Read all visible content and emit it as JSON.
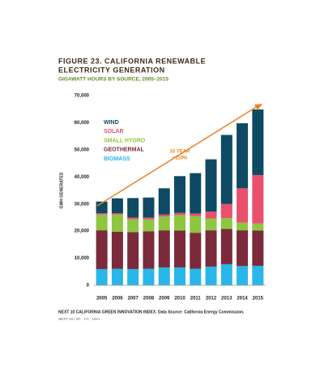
{
  "chart_data": {
    "type": "stacked_bar",
    "title": [
      "FIGURE 23. CALIFORNIA RENEWABLE",
      "ELECTRICITY GENERATION"
    ],
    "subtitle": "GIGAWATT HOURS BY SOURCE, 2005–2015",
    "y_label": "GWH GENERATED",
    "annotation": [
      "10 YEAR",
      "+110%"
    ],
    "source": "NEXT 10 CALIFORNIA GREEN INNOVATION INDEX. Data Source: California Energy Commission.",
    "footer": "NEXT 10 / SF · CA · USA",
    "categories": [
      "2005",
      "2006",
      "2007",
      "2008",
      "2009",
      "2010",
      "2011",
      "2012",
      "2013",
      "2014",
      "2015"
    ],
    "series": [
      {
        "name": "BIOMASS",
        "color": "#29b6e8",
        "values": [
          6000,
          6100,
          6000,
          6100,
          6600,
          6600,
          6100,
          6900,
          7800,
          7100,
          7200
        ]
      },
      {
        "name": "GEOTHERMAL",
        "color": "#7b2a3c",
        "values": [
          14300,
          13700,
          13600,
          13800,
          13700,
          13600,
          13300,
          13400,
          13000,
          13200,
          13000
        ]
      },
      {
        "name": "SMALL HYDRO",
        "color": "#8dc63f",
        "values": [
          5800,
          6300,
          4800,
          4400,
          5100,
          5700,
          6100,
          4300,
          4000,
          2800,
          2600
        ]
      },
      {
        "name": "SOLAR",
        "color": "#e8506e",
        "values": [
          500,
          500,
          600,
          700,
          700,
          800,
          1000,
          2600,
          5200,
          12700,
          17900
        ]
      },
      {
        "name": "WIND",
        "color": "#0e4a63",
        "values": [
          4300,
          5500,
          7200,
          7400,
          9700,
          13600,
          14900,
          19300,
          25500,
          24000,
          24200
        ]
      }
    ],
    "ylim": [
      0,
      70000
    ],
    "yticks": [
      0,
      {
        "value": 10000,
        "label": "10,000"
      },
      {
        "value": 20000,
        "label": "20,000"
      },
      {
        "value": 30000,
        "label": "30,000"
      },
      {
        "value": 40000,
        "label": "40,000"
      },
      {
        "value": 50000,
        "label": "50,000"
      },
      {
        "value": 60000,
        "label": "60,000"
      },
      {
        "value": 70000,
        "label": "70,000"
      }
    ]
  }
}
